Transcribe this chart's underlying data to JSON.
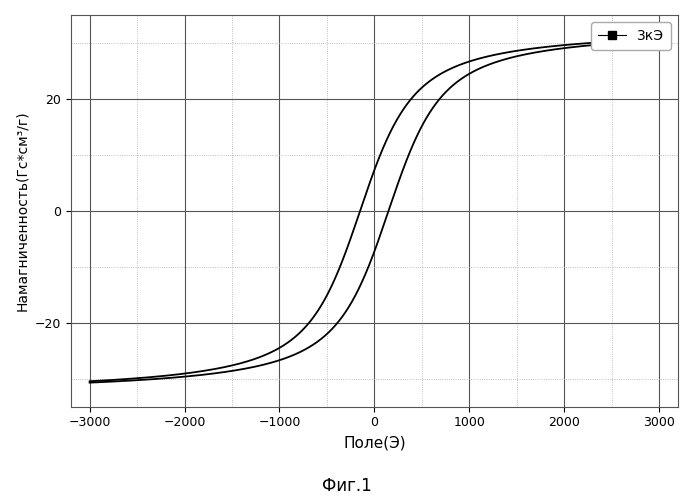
{
  "title": "",
  "xlabel": "Поле(Э)",
  "ylabel": "Намагниченность(Гс*см³/г)",
  "caption": "Фиг.1",
  "legend_label": "3кЭ",
  "xlim": [
    -3200,
    3200
  ],
  "ylim": [
    -35,
    35
  ],
  "xticks": [
    -3000,
    -2000,
    -1000,
    0,
    1000,
    2000,
    3000
  ],
  "yticks": [
    -20,
    0,
    20
  ],
  "ms_actual": 33.0,
  "hc_actual": 150,
  "a_upper": 220,
  "a_lower": 220,
  "background_color": "#ffffff",
  "line_color": "#000000",
  "grid_major_color": "#555555",
  "grid_minor_color": "#aaaaaa"
}
